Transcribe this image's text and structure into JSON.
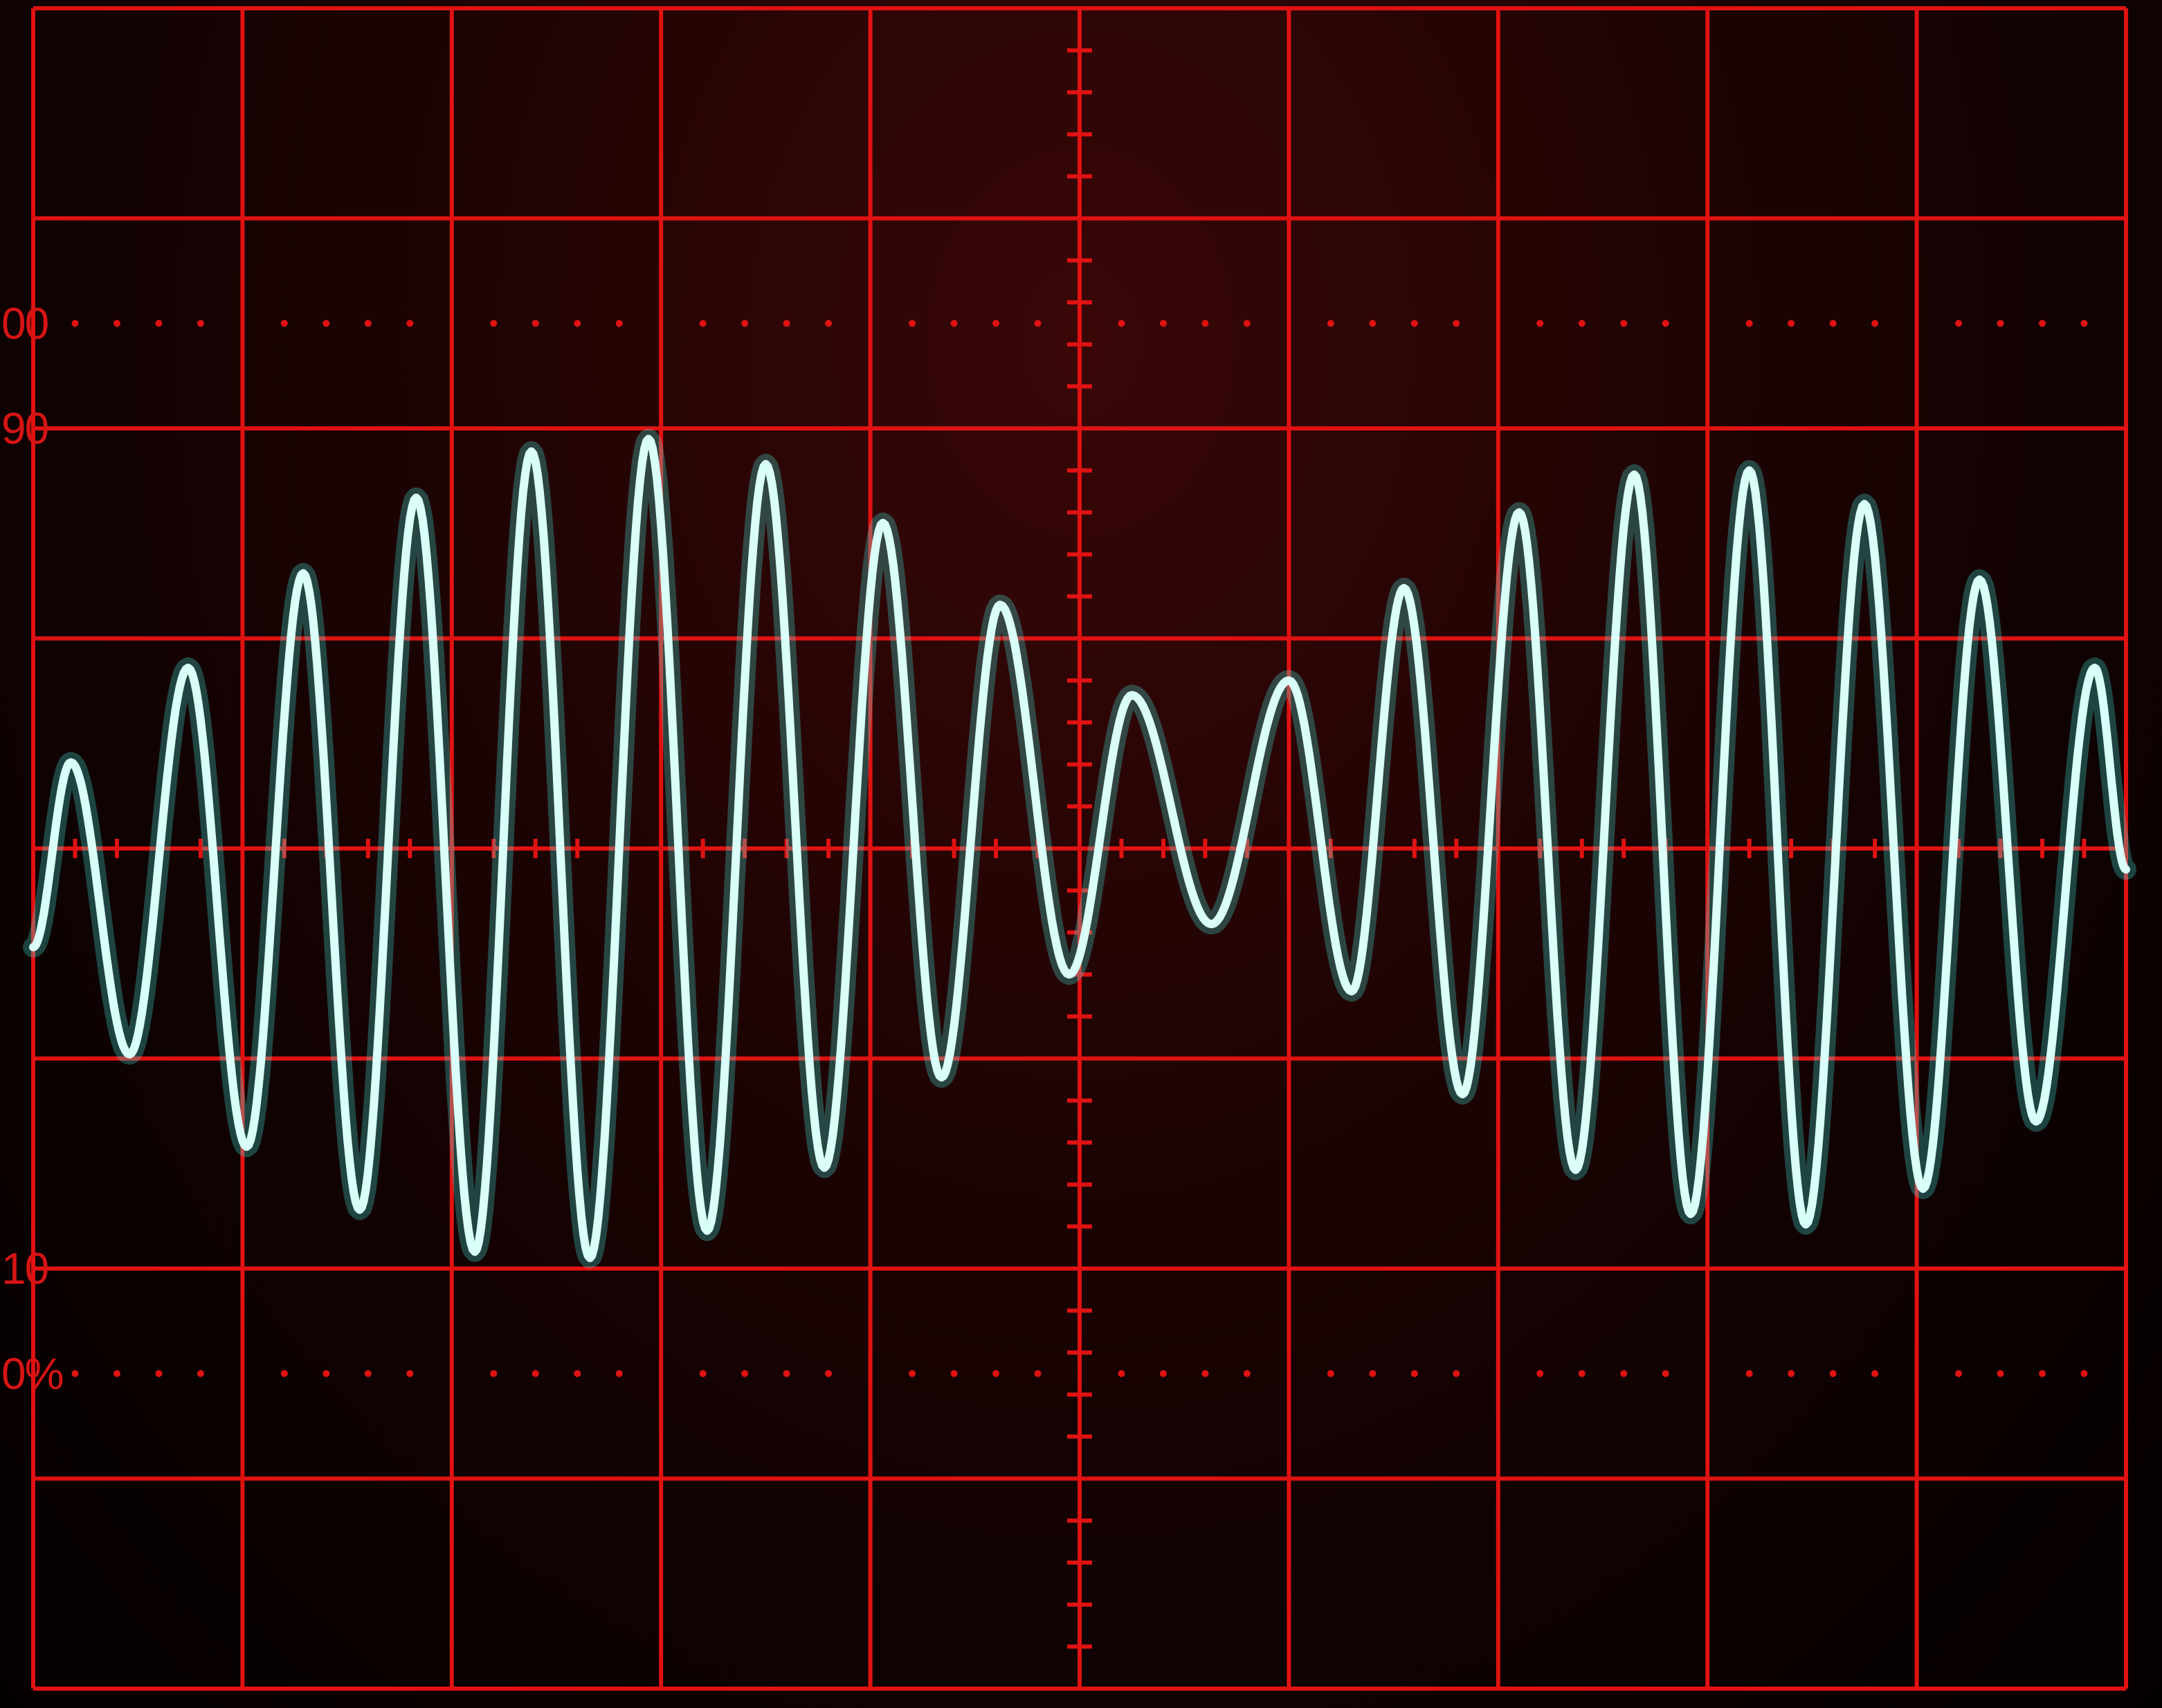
{
  "chart_data": {
    "type": "line",
    "title": "",
    "xlabel": "",
    "ylabel": "",
    "grid": true,
    "divisions": {
      "x": 10,
      "y": 8
    },
    "xlim": [
      0,
      10
    ],
    "ylim": [
      -4,
      4
    ],
    "scale_labels": [
      {
        "text": "00",
        "y": 2.5
      },
      {
        "text": "90",
        "y": 2.0
      },
      {
        "text": "10",
        "y": -2.0
      },
      {
        "text": "0%",
        "y": -2.5
      }
    ],
    "series": [
      {
        "color": "#d9fff8",
        "glow_color": "#45f0e6",
        "extrema": [
          {
            "x": 0.0,
            "y": -0.47
          },
          {
            "x": 0.18,
            "y": 0.41
          },
          {
            "x": 0.46,
            "y": -0.98
          },
          {
            "x": 0.74,
            "y": 0.86
          },
          {
            "x": 1.02,
            "y": -1.42
          },
          {
            "x": 1.29,
            "y": 1.31
          },
          {
            "x": 1.56,
            "y": -1.72
          },
          {
            "x": 1.83,
            "y": 1.67
          },
          {
            "x": 2.11,
            "y": -1.92
          },
          {
            "x": 2.38,
            "y": 1.89
          },
          {
            "x": 2.66,
            "y": -1.95
          },
          {
            "x": 2.94,
            "y": 1.95
          },
          {
            "x": 3.22,
            "y": -1.82
          },
          {
            "x": 3.5,
            "y": 1.83
          },
          {
            "x": 3.78,
            "y": -1.52
          },
          {
            "x": 4.06,
            "y": 1.55
          },
          {
            "x": 4.34,
            "y": -1.09
          },
          {
            "x": 4.62,
            "y": 1.16
          },
          {
            "x": 4.95,
            "y": -0.6
          },
          {
            "x": 5.25,
            "y": 0.73
          },
          {
            "x": 5.63,
            "y": -0.36
          },
          {
            "x": 6.0,
            "y": 0.8
          },
          {
            "x": 6.3,
            "y": -0.68
          },
          {
            "x": 6.55,
            "y": 1.24
          },
          {
            "x": 6.83,
            "y": -1.17
          },
          {
            "x": 7.1,
            "y": 1.6
          },
          {
            "x": 7.37,
            "y": -1.53
          },
          {
            "x": 7.65,
            "y": 1.78
          },
          {
            "x": 7.92,
            "y": -1.74
          },
          {
            "x": 8.2,
            "y": 1.8
          },
          {
            "x": 8.47,
            "y": -1.79
          },
          {
            "x": 8.75,
            "y": 1.64
          },
          {
            "x": 9.03,
            "y": -1.62
          },
          {
            "x": 9.3,
            "y": 1.28
          },
          {
            "x": 9.57,
            "y": -1.3
          },
          {
            "x": 9.85,
            "y": 0.86
          },
          {
            "x": 10.0,
            "y": -0.1
          }
        ]
      }
    ]
  }
}
